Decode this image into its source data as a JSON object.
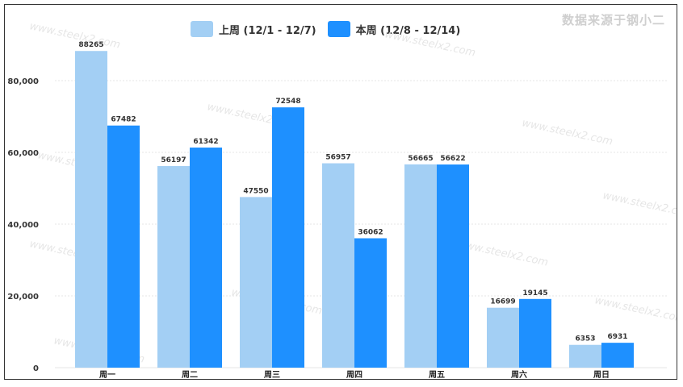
{
  "source_note": "数据来源于钢小二",
  "watermark": "www.steelx2.com",
  "chart_data": {
    "type": "bar",
    "categories": [
      "周一",
      "周二",
      "周三",
      "周四",
      "周五",
      "周六",
      "周日"
    ],
    "series": [
      {
        "name": "上周 (12/1 - 12/7)",
        "color": "#a3cff4",
        "values": [
          88265,
          56197,
          47550,
          56957,
          56665,
          16699,
          6353
        ]
      },
      {
        "name": "本周 (12/8 - 12/14)",
        "color": "#1e90ff",
        "values": [
          67482,
          61342,
          72548,
          36062,
          56622,
          19145,
          6931
        ]
      }
    ],
    "yticks": [
      "0",
      "20,000",
      "40,000",
      "60,000",
      "80,000"
    ],
    "ytick_values": [
      0,
      20000,
      40000,
      60000,
      80000
    ],
    "ylim": [
      0,
      90000
    ],
    "grid": true,
    "legend": "top-center",
    "data_labels": true
  }
}
